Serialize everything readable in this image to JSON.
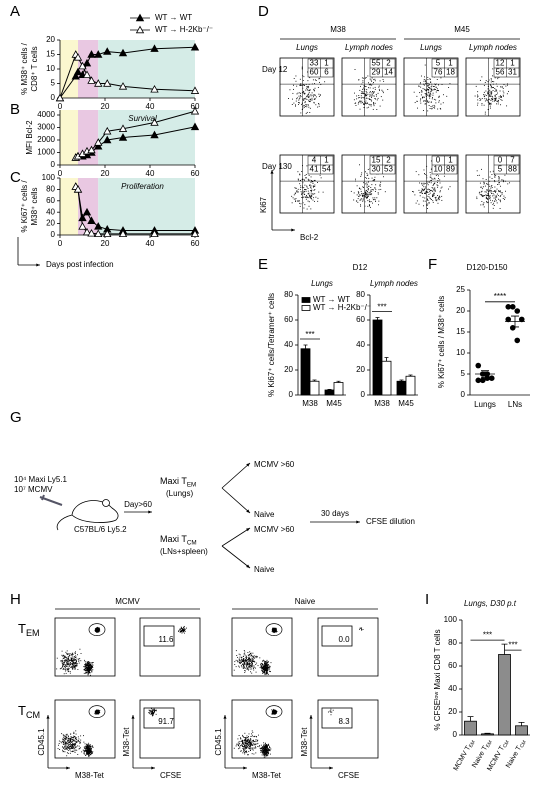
{
  "panel_labels": [
    "A",
    "B",
    "C",
    "D",
    "E",
    "F",
    "G",
    "H",
    "I"
  ],
  "chart_data": [
    {
      "type": "line",
      "ylabel": [
        "% M38⁺ cells /",
        "CD8⁺ T cells"
      ],
      "x": [
        0,
        7,
        8,
        10,
        12,
        14,
        17,
        21,
        28,
        42,
        60
      ],
      "series": [
        {
          "name": "WT → WT",
          "color": "#000000",
          "fill": "#000000",
          "values": [
            0,
            7.5,
            9,
            8,
            12,
            15,
            15,
            16,
            15.5,
            17,
            17.5
          ]
        },
        {
          "name": "WT → H-2Kb⁻/⁻",
          "color": "#000000",
          "fill": "#ffffff",
          "values": [
            0,
            15,
            14,
            11,
            8,
            6,
            5,
            5,
            4,
            3,
            2.5
          ]
        }
      ],
      "xlim": [
        0,
        60
      ],
      "ylim": [
        0,
        20
      ],
      "xticks": [
        0,
        20,
        40,
        60
      ],
      "yticks": [
        0,
        5,
        10,
        15,
        20
      ],
      "legend": "top",
      "shading": [
        {
          "from": 0,
          "to": 8,
          "color": "#fbf7cf"
        },
        {
          "from": 8,
          "to": 17,
          "color": "#e9c8e2"
        },
        {
          "from": 17,
          "to": 60,
          "color": "#d5ece7"
        }
      ]
    },
    {
      "type": "line",
      "ylabel": [
        "MFI Bcl-2"
      ],
      "annotation": "Survival",
      "x": [
        7,
        8,
        10,
        12,
        14,
        17,
        21,
        28,
        42,
        60
      ],
      "series": [
        {
          "name": "WT → WT",
          "color": "#000000",
          "fill": "#000000",
          "values": [
            600,
            700,
            700,
            800,
            1000,
            1500,
            2000,
            2200,
            2400,
            3050
          ]
        },
        {
          "name": "WT → H-2Kb⁻/⁻",
          "color": "#000000",
          "fill": "#ffffff",
          "values": [
            600,
            700,
            900,
            1100,
            1200,
            1800,
            2700,
            2900,
            3400,
            4300
          ]
        }
      ],
      "xlim": [
        0,
        60
      ],
      "ylim": [
        0,
        4400
      ],
      "xticks": [
        0,
        20,
        40,
        60
      ],
      "yticks": [
        0,
        1000,
        2000,
        3000,
        4000
      ],
      "shading": [
        {
          "from": 0,
          "to": 8,
          "color": "#fbf7cf"
        },
        {
          "from": 8,
          "to": 17,
          "color": "#e9c8e2"
        },
        {
          "from": 17,
          "to": 60,
          "color": "#d5ece7"
        }
      ]
    },
    {
      "type": "line",
      "ylabel": [
        "% Ki67⁺ cells /",
        "M38⁺ cells"
      ],
      "annotation": "Proliferation",
      "xlabel": "Days post infection",
      "x": [
        7,
        8,
        10,
        12,
        14,
        17,
        21,
        28,
        42,
        60
      ],
      "series": [
        {
          "name": "WT → WT",
          "color": "#000000",
          "fill": "#000000",
          "values": [
            85,
            80,
            30,
            40,
            25,
            15,
            10,
            8,
            8,
            8
          ]
        },
        {
          "name": "WT → H-2Kb⁻/⁻",
          "color": "#000000",
          "fill": "#ffffff",
          "values": [
            85,
            80,
            15,
            5,
            3,
            2,
            2,
            2,
            2,
            2
          ]
        }
      ],
      "xlim": [
        0,
        60
      ],
      "ylim": [
        0,
        100
      ],
      "xticks": [
        0,
        20,
        40,
        60
      ],
      "yticks": [
        0,
        20,
        40,
        60,
        80,
        100
      ],
      "shading": [
        {
          "from": 0,
          "to": 8,
          "color": "#fbf7cf"
        },
        {
          "from": 8,
          "to": 17,
          "color": "#e9c8e2"
        },
        {
          "from": 17,
          "to": 60,
          "color": "#d5ece7"
        }
      ]
    },
    {
      "type": "grouped-bar",
      "title": "D12",
      "ylabel": [
        "% Ki67⁺ cells/Tetramer⁺ cells"
      ],
      "facets": [
        "Lungs",
        "Lymph nodes"
      ],
      "categories": [
        "M38",
        "M45"
      ],
      "series": [
        {
          "name": "WT → WT",
          "color": "#000000",
          "fill": "#000000",
          "values": [
            [
              37,
              4
            ],
            [
              60,
              11
            ]
          ],
          "errors": [
            [
              3,
              0.5
            ],
            [
              2,
              1
            ]
          ]
        },
        {
          "name": "WT → H-2Kb⁻/⁻",
          "color": "#000000",
          "fill": "#ffffff",
          "values": [
            [
              11,
              10
            ],
            [
              27,
              15
            ]
          ],
          "errors": [
            [
              1,
              1
            ],
            [
              3,
              1
            ]
          ]
        }
      ],
      "ylim": [
        0,
        80
      ],
      "yticks": [
        0,
        20,
        40,
        60,
        80
      ],
      "significance": [
        {
          "text": "***",
          "facet": 0,
          "category": 0
        },
        {
          "text": "***",
          "facet": 1,
          "category": 0
        }
      ]
    },
    {
      "type": "dot",
      "title": "D120-D150",
      "ylabel": [
        "% Ki67⁺ cells / M38⁺ cells"
      ],
      "categories": [
        "Lungs",
        "LNs"
      ],
      "values": [
        [
          7,
          5,
          4,
          4,
          3.5,
          3.5,
          5
        ],
        [
          21,
          21,
          20,
          18,
          18,
          16,
          13
        ]
      ],
      "means": [
        5,
        17.5
      ],
      "sems": [
        0.8,
        1.3
      ],
      "color": "#000000",
      "ylim": [
        0,
        25
      ],
      "yticks": [
        0,
        5,
        10,
        15,
        20,
        25
      ],
      "significance": [
        {
          "text": "****",
          "from": 0,
          "to": 1
        }
      ]
    },
    {
      "type": "bar",
      "title": "Lungs, D30 p.t",
      "ylabel": [
        "% CFSEˡᵒʷ Maxi CD8 T cells"
      ],
      "categories": [
        {
          "main": "MCMV T",
          "sub": "EM"
        },
        {
          "main": "Naive T",
          "sub": "EM"
        },
        {
          "main": "MCMV T",
          "sub": "CM"
        },
        {
          "main": "Naive T",
          "sub": "CM"
        }
      ],
      "values": [
        12,
        1,
        70,
        8
      ],
      "errors": [
        4,
        0.5,
        9,
        3
      ],
      "color": "#8c8c8c",
      "ylim": [
        0,
        100
      ],
      "yticks": [
        0,
        20,
        40,
        60,
        80,
        100
      ],
      "significance": [
        {
          "text": "***",
          "from": 0,
          "to": 2
        },
        {
          "text": "***",
          "from": 2,
          "to": 3
        }
      ]
    }
  ],
  "flow_d": {
    "groups": [
      "M38",
      "M45"
    ],
    "tissues": [
      "Lungs",
      "Lymph nodes"
    ],
    "days": [
      "Day 12",
      "Day 130"
    ],
    "quadrants": [
      [
        [
          33,
          1,
          60,
          6
        ],
        [
          55,
          2,
          29,
          14
        ],
        [
          5,
          1,
          76,
          18
        ],
        [
          12,
          1,
          56,
          31
        ]
      ],
      [
        [
          4,
          1,
          41,
          54
        ],
        [
          15,
          2,
          30,
          53
        ],
        [
          0,
          1,
          10,
          89
        ],
        [
          0,
          7,
          5,
          88
        ]
      ]
    ],
    "y_axis": "Ki67",
    "x_axis": "Bcl-2"
  },
  "diagram": {
    "cells": "10⁴ Maxi Ly5.1",
    "virus": "10⁷ MCMV",
    "mouse": "C57BL/6 Ly5.2",
    "time": "Day>60",
    "tem": {
      "main": "Maxi T",
      "sub": "EM",
      "note": "(Lungs)"
    },
    "tcm": {
      "main": "Maxi T",
      "sub": "CM",
      "note": "(LNs+spleen)"
    },
    "targets": [
      "MCMV >60",
      "Naive",
      "MCMV >60",
      "Naive"
    ],
    "wait": "30 days",
    "readout": "CFSE dilution"
  },
  "flow_h": {
    "conditions": [
      "MCMV",
      "Naive"
    ],
    "rows": [
      {
        "main": "T",
        "sub": "EM"
      },
      {
        "main": "T",
        "sub": "CM"
      }
    ],
    "gates": [
      [
        "11.6",
        "0.0"
      ],
      [
        "91.7",
        "8.3"
      ]
    ],
    "axes": [
      "CD45.1",
      "M38-Tet",
      "CFSE"
    ]
  }
}
